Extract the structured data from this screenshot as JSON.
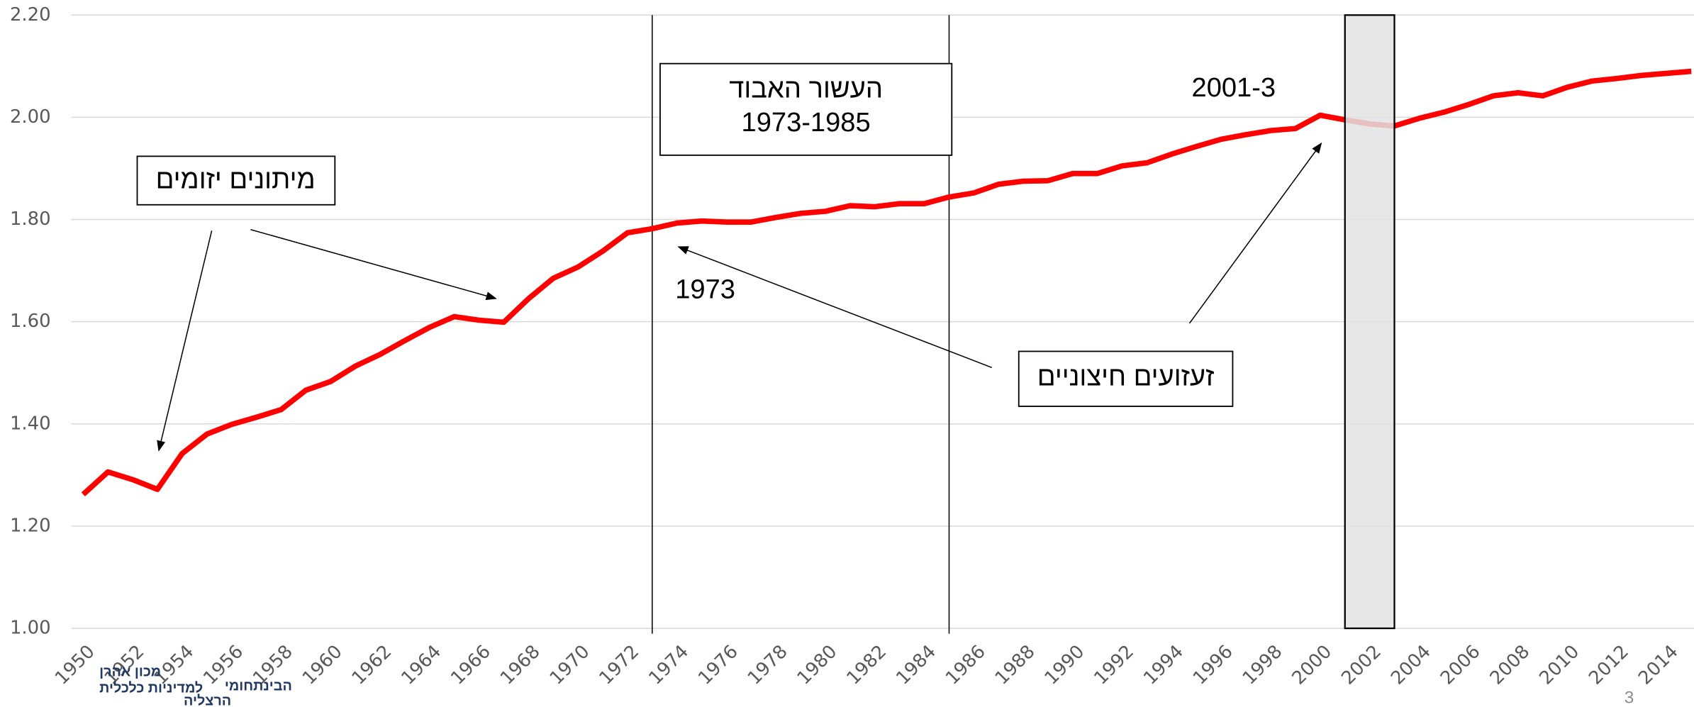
{
  "chart_data": {
    "type": "line",
    "x": [
      1950,
      1951,
      1952,
      1953,
      1954,
      1955,
      1956,
      1957,
      1958,
      1959,
      1960,
      1961,
      1962,
      1963,
      1964,
      1965,
      1966,
      1967,
      1968,
      1969,
      1970,
      1971,
      1972,
      1973,
      1974,
      1975,
      1976,
      1977,
      1978,
      1979,
      1980,
      1981,
      1982,
      1983,
      1984,
      1985,
      1986,
      1987,
      1988,
      1989,
      1990,
      1991,
      1992,
      1993,
      1994,
      1995,
      1996,
      1997,
      1998,
      1999,
      2000,
      2001,
      2002,
      2003,
      2004,
      2005,
      2006,
      2007,
      2008,
      2009,
      2010,
      2011,
      2012,
      2013,
      2014,
      2015
    ],
    "series": [
      {
        "color": "#ff0000",
        "values": [
          1.262,
          1.306,
          1.291,
          1.272,
          1.342,
          1.38,
          1.399,
          1.413,
          1.428,
          1.466,
          1.483,
          1.513,
          1.536,
          1.563,
          1.589,
          1.61,
          1.603,
          1.599,
          1.645,
          1.685,
          1.707,
          1.738,
          1.774,
          1.782,
          1.793,
          1.797,
          1.795,
          1.795,
          1.804,
          1.812,
          1.816,
          1.827,
          1.825,
          1.831,
          1.831,
          1.844,
          1.852,
          1.869,
          1.875,
          1.876,
          1.89,
          1.89,
          1.905,
          1.911,
          1.928,
          1.943,
          1.957,
          1.966,
          1.974,
          1.978,
          2.004,
          1.995,
          1.987,
          1.983,
          1.998,
          2.01,
          2.025,
          2.042,
          2.048,
          2.042,
          2.059,
          2.071,
          2.076,
          2.082,
          2.086,
          2.09
        ]
      }
    ],
    "xlim": [
      1950,
      2015
    ],
    "xticks": [
      1950,
      1952,
      1954,
      1956,
      1958,
      1960,
      1962,
      1964,
      1966,
      1968,
      1970,
      1972,
      1974,
      1976,
      1978,
      1980,
      1982,
      1984,
      1986,
      1988,
      1990,
      1992,
      1994,
      1996,
      1998,
      2000,
      2002,
      2004,
      2006,
      2008,
      2010,
      2012,
      2014
    ],
    "ylim": [
      1.0,
      2.2
    ],
    "yticks": [
      {
        "value": 1.0,
        "label": "1.00"
      },
      {
        "value": 1.2,
        "label": "1.20"
      },
      {
        "value": 1.4,
        "label": "1.40"
      },
      {
        "value": 1.6,
        "label": "1.60"
      },
      {
        "value": 1.8,
        "label": "1.80"
      },
      {
        "value": 2.0,
        "label": "2.00"
      },
      {
        "value": 2.2,
        "label": "2.20"
      }
    ],
    "grid": true,
    "reference_lines": [
      1973,
      1985
    ],
    "shaded_region": [
      2001,
      2003
    ],
    "annotations": [
      "מיתונים יזומים",
      "העשור האבוד",
      "1973-1985",
      "1973",
      "2001-3",
      "זעזועים חיצוניים"
    ]
  },
  "page_number": "3",
  "logo": [
    "מכון אהרן",
    "למדיניות כלכלית",
    "הבינתחומי",
    "הרצליה"
  ]
}
